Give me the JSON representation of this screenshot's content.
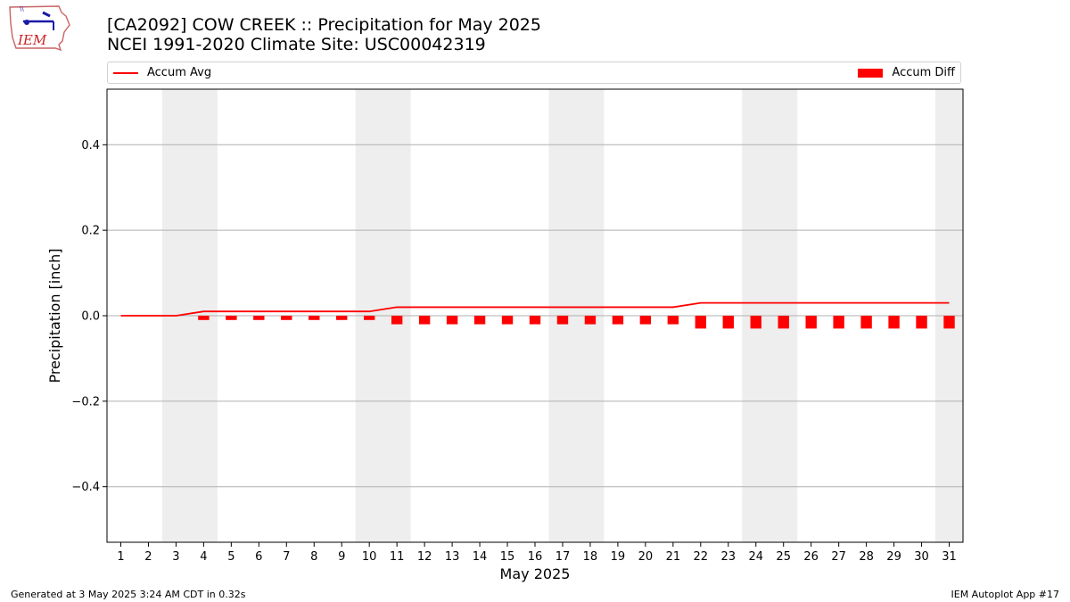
{
  "header": {
    "title_line1": "[CA2092] COW CREEK :: Precipitation for May 2025",
    "title_line2": "NCEI 1991-2020 Climate Site: USC00042319"
  },
  "logo": {
    "text": "IEM",
    "icon": "iem-iowa-logo"
  },
  "legend": {
    "line_label": "Accum Avg",
    "bar_label": "Accum Diff"
  },
  "footer": {
    "left": "Generated at 3 May 2025 3:24 AM CDT in 0.32s",
    "right": "IEM Autoplot App #17"
  },
  "chart_data": {
    "type": "bar",
    "xlabel": "May 2025",
    "ylabel": "Precipitation [inch]",
    "ylim": [
      -0.53,
      0.53
    ],
    "xlim": [
      0.5,
      31.5
    ],
    "yticks": [
      -0.4,
      -0.2,
      0.0,
      0.2,
      0.4
    ],
    "ytick_labels": [
      "−0.4",
      "−0.2",
      "0.0",
      "0.2",
      "0.4"
    ],
    "x": [
      1,
      2,
      3,
      4,
      5,
      6,
      7,
      8,
      9,
      10,
      11,
      12,
      13,
      14,
      15,
      16,
      17,
      18,
      19,
      20,
      21,
      22,
      23,
      24,
      25,
      26,
      27,
      28,
      29,
      30,
      31
    ],
    "grid": "horizontal",
    "weekend_shading": [
      [
        3,
        4
      ],
      [
        10,
        11
      ],
      [
        17,
        18
      ],
      [
        24,
        25
      ],
      [
        31,
        31
      ]
    ],
    "series": [
      {
        "name": "Accum Avg",
        "kind": "line",
        "color": "#ff0000",
        "values": [
          0.0,
          0.0,
          0.0,
          0.01,
          0.01,
          0.01,
          0.01,
          0.01,
          0.01,
          0.01,
          0.02,
          0.02,
          0.02,
          0.02,
          0.02,
          0.02,
          0.02,
          0.02,
          0.02,
          0.02,
          0.02,
          0.03,
          0.03,
          0.03,
          0.03,
          0.03,
          0.03,
          0.03,
          0.03,
          0.03,
          0.03
        ]
      },
      {
        "name": "Accum Diff",
        "kind": "bar",
        "color": "#ff0000",
        "values": [
          0.0,
          0.0,
          0.0,
          -0.01,
          -0.01,
          -0.01,
          -0.01,
          -0.01,
          -0.01,
          -0.01,
          -0.02,
          -0.02,
          -0.02,
          -0.02,
          -0.02,
          -0.02,
          -0.02,
          -0.02,
          -0.02,
          -0.02,
          -0.02,
          -0.03,
          -0.03,
          -0.03,
          -0.03,
          -0.03,
          -0.03,
          -0.03,
          -0.03,
          -0.03,
          -0.03
        ]
      }
    ]
  }
}
